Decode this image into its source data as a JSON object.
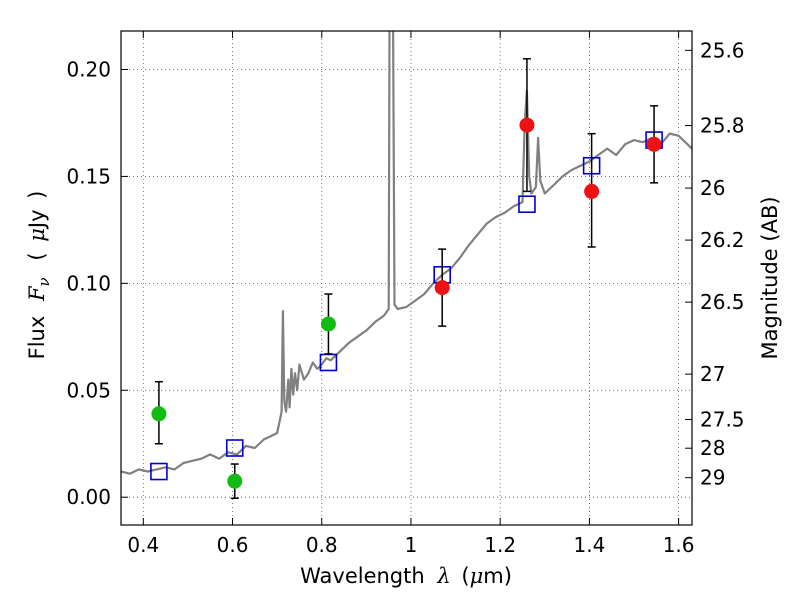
{
  "chart_data": {
    "type": "scatter",
    "title": "",
    "xlabel": {
      "prefix": "Wavelength",
      "symbol": "λ",
      "unit_open": "(",
      "unit_symbol": "μ",
      "unit_rest": "m)"
    },
    "ylabel": {
      "prefix": "Flux",
      "symbol": "F",
      "subscript": "ν",
      "unit_open": "(",
      "unit_symbol": "μ",
      "unit_rest": "Jy",
      "unit_close": ")"
    },
    "ylabel_right": "Magnitude (AB)",
    "xlim": [
      0.35,
      1.63
    ],
    "ylim": [
      -0.013,
      0.218
    ],
    "grid": true,
    "legend": "none",
    "x_ticks": [
      {
        "value": 0.4,
        "label": "0.4"
      },
      {
        "value": 0.6,
        "label": "0.6"
      },
      {
        "value": 0.8,
        "label": "0.8"
      },
      {
        "value": 1.0,
        "label": "1"
      },
      {
        "value": 1.2,
        "label": "1.2"
      },
      {
        "value": 1.4,
        "label": "1.4"
      },
      {
        "value": 1.6,
        "label": "1.6"
      }
    ],
    "y_ticks": [
      {
        "value": 0.0,
        "label": "0.00"
      },
      {
        "value": 0.05,
        "label": "0.05"
      },
      {
        "value": 0.1,
        "label": "0.10"
      },
      {
        "value": 0.15,
        "label": "0.15"
      },
      {
        "value": 0.2,
        "label": "0.20"
      }
    ],
    "right_ticks": [
      {
        "label": "25.6",
        "mag": 25.6
      },
      {
        "label": "25.8",
        "mag": 25.8
      },
      {
        "label": "26",
        "mag": 26.0
      },
      {
        "label": "26.2",
        "mag": 26.2
      },
      {
        "label": "26.5",
        "mag": 26.5
      },
      {
        "label": "27",
        "mag": 27.0
      },
      {
        "label": "27.5",
        "mag": 27.5
      },
      {
        "label": "28",
        "mag": 28.0
      },
      {
        "label": "29",
        "mag": 29.0
      }
    ],
    "colors": {
      "spectrum": "#808080",
      "model": "#0000cc",
      "optical": "#11bb11",
      "nir": "#ee1111",
      "errorbar": "#000000",
      "grid": "#555555"
    },
    "spectrum": [
      [
        0.35,
        0.012
      ],
      [
        0.37,
        0.011
      ],
      [
        0.39,
        0.013
      ],
      [
        0.41,
        0.012
      ],
      [
        0.43,
        0.013
      ],
      [
        0.45,
        0.014
      ],
      [
        0.47,
        0.013
      ],
      [
        0.49,
        0.016
      ],
      [
        0.51,
        0.017
      ],
      [
        0.53,
        0.018
      ],
      [
        0.55,
        0.02
      ],
      [
        0.57,
        0.018
      ],
      [
        0.59,
        0.021
      ],
      [
        0.61,
        0.02
      ],
      [
        0.63,
        0.024
      ],
      [
        0.65,
        0.023
      ],
      [
        0.67,
        0.027
      ],
      [
        0.69,
        0.029
      ],
      [
        0.7,
        0.03
      ],
      [
        0.705,
        0.035
      ],
      [
        0.71,
        0.04
      ],
      [
        0.713,
        0.087
      ],
      [
        0.716,
        0.045
      ],
      [
        0.72,
        0.04
      ],
      [
        0.725,
        0.055
      ],
      [
        0.728,
        0.042
      ],
      [
        0.732,
        0.06
      ],
      [
        0.736,
        0.048
      ],
      [
        0.74,
        0.058
      ],
      [
        0.745,
        0.05
      ],
      [
        0.75,
        0.062
      ],
      [
        0.76,
        0.055
      ],
      [
        0.77,
        0.058
      ],
      [
        0.78,
        0.063
      ],
      [
        0.79,
        0.06
      ],
      [
        0.8,
        0.062
      ],
      [
        0.81,
        0.065
      ],
      [
        0.82,
        0.064
      ],
      [
        0.84,
        0.068
      ],
      [
        0.86,
        0.072
      ],
      [
        0.88,
        0.075
      ],
      [
        0.9,
        0.078
      ],
      [
        0.92,
        0.082
      ],
      [
        0.94,
        0.085
      ],
      [
        0.95,
        0.088
      ],
      [
        0.952,
        0.22
      ],
      [
        0.96,
        0.22
      ],
      [
        0.963,
        0.09
      ],
      [
        0.97,
        0.088
      ],
      [
        0.99,
        0.089
      ],
      [
        1.01,
        0.092
      ],
      [
        1.03,
        0.095
      ],
      [
        1.05,
        0.1
      ],
      [
        1.07,
        0.104
      ],
      [
        1.09,
        0.107
      ],
      [
        1.11,
        0.112
      ],
      [
        1.13,
        0.118
      ],
      [
        1.15,
        0.123
      ],
      [
        1.17,
        0.128
      ],
      [
        1.19,
        0.131
      ],
      [
        1.21,
        0.133
      ],
      [
        1.23,
        0.136
      ],
      [
        1.25,
        0.138
      ],
      [
        1.255,
        0.175
      ],
      [
        1.26,
        0.19
      ],
      [
        1.265,
        0.15
      ],
      [
        1.27,
        0.142
      ],
      [
        1.28,
        0.145
      ],
      [
        1.285,
        0.168
      ],
      [
        1.29,
        0.148
      ],
      [
        1.3,
        0.142
      ],
      [
        1.32,
        0.146
      ],
      [
        1.34,
        0.15
      ],
      [
        1.36,
        0.153
      ],
      [
        1.38,
        0.155
      ],
      [
        1.4,
        0.157
      ],
      [
        1.42,
        0.16
      ],
      [
        1.44,
        0.163
      ],
      [
        1.46,
        0.16
      ],
      [
        1.48,
        0.165
      ],
      [
        1.5,
        0.167
      ],
      [
        1.52,
        0.166
      ],
      [
        1.54,
        0.168
      ],
      [
        1.56,
        0.165
      ],
      [
        1.58,
        0.17
      ],
      [
        1.6,
        0.169
      ],
      [
        1.62,
        0.165
      ],
      [
        1.63,
        0.163
      ]
    ],
    "model_points": [
      {
        "x": 0.435,
        "y": 0.012
      },
      {
        "x": 0.605,
        "y": 0.023
      },
      {
        "x": 0.815,
        "y": 0.063
      },
      {
        "x": 1.07,
        "y": 0.104
      },
      {
        "x": 1.26,
        "y": 0.137
      },
      {
        "x": 1.405,
        "y": 0.155
      },
      {
        "x": 1.545,
        "y": 0.167
      }
    ],
    "observed_points": [
      {
        "x": 0.435,
        "y": 0.039,
        "ylo": 0.025,
        "yhi": 0.054,
        "band": "optical"
      },
      {
        "x": 0.605,
        "y": 0.0075,
        "ylo": -0.0005,
        "yhi": 0.0155,
        "band": "optical"
      },
      {
        "x": 0.815,
        "y": 0.081,
        "ylo": 0.067,
        "yhi": 0.095,
        "band": "optical"
      },
      {
        "x": 1.07,
        "y": 0.098,
        "ylo": 0.08,
        "yhi": 0.116,
        "band": "nir"
      },
      {
        "x": 1.26,
        "y": 0.174,
        "ylo": 0.143,
        "yhi": 0.205,
        "band": "nir"
      },
      {
        "x": 1.405,
        "y": 0.143,
        "ylo": 0.117,
        "yhi": 0.17,
        "band": "nir"
      },
      {
        "x": 1.545,
        "y": 0.165,
        "ylo": 0.147,
        "yhi": 0.183,
        "band": "nir"
      }
    ]
  }
}
